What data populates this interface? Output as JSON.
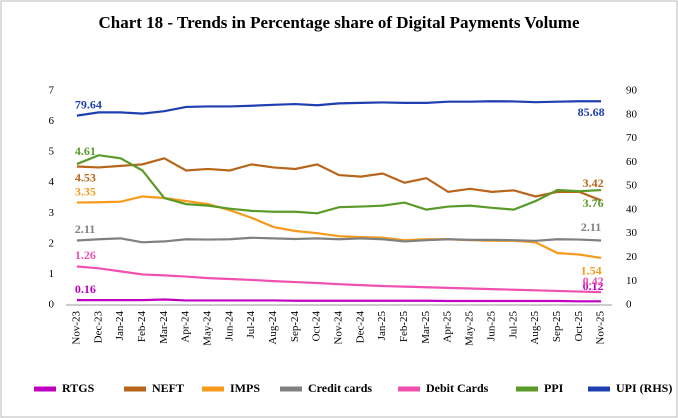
{
  "chart_data": {
    "type": "line",
    "title": "Chart 18 - Trends in Percentage share of Digital Payments Volume",
    "categories": [
      "Nov-23",
      "Dec-23",
      "Jan-24",
      "Feb-24",
      "Mar-24",
      "Apr-24",
      "May-24",
      "Jun-24",
      "Jul-24",
      "Aug-24",
      "Sep-24",
      "Oct-24",
      "Nov-24",
      "Dec-24",
      "Jan-25",
      "Feb-25",
      "Mar-25",
      "Apr-25",
      "May-25",
      "Jun-25",
      "Jul-25",
      "Aug-25",
      "Sep-25",
      "Oct-25",
      "Nov-25"
    ],
    "ylim": [
      0,
      7
    ],
    "yticks": [
      0,
      1,
      2,
      3,
      4,
      5,
      6,
      7
    ],
    "y2lim": [
      0,
      90
    ],
    "y2ticks": [
      0,
      10,
      20,
      30,
      40,
      50,
      60,
      70,
      80,
      90
    ],
    "grid": false,
    "series": [
      {
        "name": "RTGS",
        "color": "#c000c0",
        "values": [
          0.16,
          0.16,
          0.16,
          0.16,
          0.18,
          0.15,
          0.15,
          0.15,
          0.15,
          0.15,
          0.14,
          0.14,
          0.14,
          0.14,
          0.14,
          0.14,
          0.14,
          0.13,
          0.13,
          0.13,
          0.13,
          0.13,
          0.13,
          0.12,
          0.12
        ]
      },
      {
        "name": "NEFT",
        "color": "#b8651b",
        "values": [
          4.53,
          4.5,
          4.55,
          4.6,
          4.8,
          4.4,
          4.45,
          4.4,
          4.6,
          4.5,
          4.45,
          4.6,
          4.25,
          4.2,
          4.3,
          4.0,
          4.15,
          3.7,
          3.8,
          3.7,
          3.75,
          3.55,
          3.7,
          3.7,
          3.42
        ]
      },
      {
        "name": "IMPS",
        "color": "#f59a1b",
        "values": [
          3.35,
          3.36,
          3.38,
          3.55,
          3.5,
          3.4,
          3.3,
          3.1,
          2.85,
          2.55,
          2.42,
          2.35,
          2.25,
          2.22,
          2.2,
          2.12,
          2.15,
          2.15,
          2.12,
          2.1,
          2.1,
          2.05,
          1.7,
          1.65,
          1.54
        ]
      },
      {
        "name": "Credit cards",
        "color": "#808080",
        "values": [
          2.11,
          2.15,
          2.18,
          2.05,
          2.08,
          2.15,
          2.14,
          2.15,
          2.2,
          2.18,
          2.16,
          2.18,
          2.15,
          2.18,
          2.15,
          2.08,
          2.12,
          2.15,
          2.13,
          2.13,
          2.12,
          2.1,
          2.15,
          2.14,
          2.11
        ]
      },
      {
        "name": "Debit Cards",
        "color": "#f050b0",
        "values": [
          1.26,
          1.2,
          1.1,
          1.0,
          0.97,
          0.93,
          0.88,
          0.85,
          0.82,
          0.78,
          0.75,
          0.72,
          0.68,
          0.65,
          0.62,
          0.6,
          0.58,
          0.56,
          0.54,
          0.52,
          0.5,
          0.48,
          0.46,
          0.44,
          0.42
        ]
      },
      {
        "name": "PPI",
        "color": "#5a9a28",
        "values": [
          4.61,
          4.9,
          4.8,
          4.4,
          3.5,
          3.3,
          3.25,
          3.15,
          3.08,
          3.05,
          3.05,
          3.0,
          3.2,
          3.22,
          3.25,
          3.35,
          3.12,
          3.22,
          3.25,
          3.18,
          3.12,
          3.4,
          3.76,
          3.72,
          3.76
        ]
      },
      {
        "name": "UPI (RHS)",
        "color": "#1f3fb0",
        "axis": "y2",
        "values": [
          79.64,
          81,
          81,
          80.5,
          81.5,
          83.3,
          83.5,
          83.5,
          83.8,
          84.2,
          84.5,
          84.0,
          84.8,
          85,
          85.2,
          85,
          85,
          85.5,
          85.5,
          85.7,
          85.6,
          85.3,
          85.5,
          85.7,
          85.68
        ]
      }
    ]
  }
}
